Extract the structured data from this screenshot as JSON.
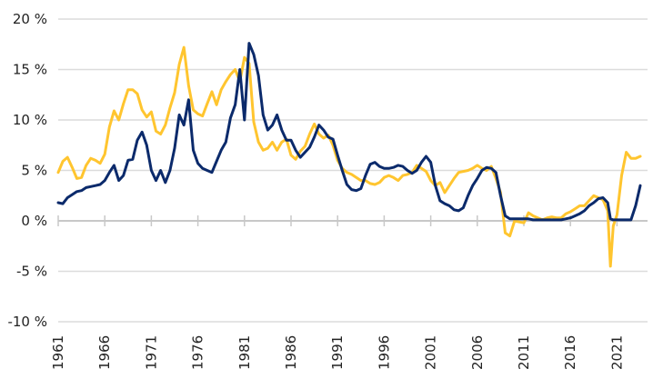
{
  "chart_data": {
    "type": "line",
    "title": "",
    "xlabel": "",
    "ylabel": "",
    "xlim": [
      1961,
      2023.6
    ],
    "ylim": [
      -10,
      20
    ],
    "grid": true,
    "legend": "none",
    "yticks": [
      20,
      15,
      10,
      5,
      0,
      -5,
      -10
    ],
    "ytick_labels": [
      "20 %",
      "15 %",
      "10 %",
      "5 %",
      "0 %",
      "-5 %",
      "-10 %"
    ],
    "xticks": [
      1961,
      1966,
      1971,
      1976,
      1981,
      1986,
      1991,
      1996,
      2001,
      2006,
      2011,
      2016,
      2021
    ],
    "xtick_labels": [
      "1961",
      "1966",
      "1971",
      "1976",
      "1981",
      "1986",
      "1991",
      "1996",
      "2001",
      "2006",
      "2011",
      "2016",
      "2021"
    ],
    "series": [
      {
        "name": "series-yellow",
        "color": "#FFC52F",
        "x": [
          1961.0,
          1961.5,
          1962.0,
          1962.5,
          1963.0,
          1963.5,
          1964.0,
          1964.5,
          1965.0,
          1965.5,
          1966.0,
          1966.5,
          1967.0,
          1967.5,
          1968.0,
          1968.5,
          1969.0,
          1969.5,
          1970.0,
          1970.5,
          1971.0,
          1971.5,
          1972.0,
          1972.5,
          1973.0,
          1973.5,
          1974.0,
          1974.5,
          1975.0,
          1975.5,
          1976.0,
          1976.5,
          1977.0,
          1977.5,
          1978.0,
          1978.5,
          1979.0,
          1979.5,
          1980.0,
          1980.5,
          1981.0,
          1981.5,
          1982.0,
          1982.5,
          1983.0,
          1983.5,
          1984.0,
          1984.5,
          1985.0,
          1985.5,
          1986.0,
          1986.5,
          1987.0,
          1987.5,
          1988.0,
          1988.5,
          1989.0,
          1989.5,
          1990.0,
          1990.5,
          1991.0,
          1991.5,
          1992.0,
          1992.5,
          1993.0,
          1993.5,
          1994.0,
          1994.5,
          1995.0,
          1995.5,
          1996.0,
          1996.5,
          1997.0,
          1997.5,
          1998.0,
          1998.5,
          1999.0,
          1999.5,
          2000.0,
          2000.5,
          2001.0,
          2001.5,
          2002.0,
          2002.5,
          2003.0,
          2003.5,
          2004.0,
          2004.5,
          2005.0,
          2005.5,
          2006.0,
          2006.5,
          2007.0,
          2007.5,
          2008.0,
          2008.5,
          2009.0,
          2009.5,
          2010.0,
          2010.5,
          2011.0,
          2011.5,
          2012.0,
          2012.5,
          2013.0,
          2013.5,
          2014.0,
          2014.5,
          2015.0,
          2015.5,
          2016.0,
          2016.5,
          2017.0,
          2017.5,
          2018.0,
          2018.5,
          2019.0,
          2019.5,
          2020.0,
          2020.3,
          2020.6,
          2021.0,
          2021.5,
          2022.0,
          2022.5,
          2023.0,
          2023.5
        ],
        "y": [
          4.8,
          5.9,
          6.3,
          5.3,
          4.2,
          4.3,
          5.5,
          6.2,
          6.0,
          5.7,
          6.6,
          9.3,
          10.9,
          10.0,
          11.6,
          13.0,
          13.0,
          12.6,
          11.0,
          10.3,
          10.8,
          8.9,
          8.6,
          9.5,
          11.2,
          12.7,
          15.5,
          17.2,
          13.4,
          11.0,
          10.6,
          10.4,
          11.6,
          12.8,
          11.5,
          13.0,
          13.8,
          14.5,
          15.0,
          13.8,
          16.2,
          15.6,
          9.8,
          7.8,
          7.0,
          7.2,
          7.8,
          7.0,
          7.8,
          8.1,
          6.5,
          6.1,
          6.9,
          7.4,
          8.6,
          9.6,
          8.6,
          8.2,
          8.5,
          7.5,
          6.0,
          5.2,
          4.8,
          4.6,
          4.3,
          4.0,
          4.0,
          3.7,
          3.6,
          3.8,
          4.3,
          4.5,
          4.3,
          4.0,
          4.5,
          4.6,
          4.8,
          5.5,
          5.2,
          4.9,
          4.0,
          3.5,
          3.8,
          2.8,
          3.5,
          4.2,
          4.8,
          4.9,
          5.0,
          5.2,
          5.5,
          5.2,
          5.0,
          5.4,
          4.2,
          2.8,
          -1.2,
          -1.5,
          0.0,
          -0.1,
          -0.2,
          0.8,
          0.5,
          0.3,
          0.1,
          0.3,
          0.4,
          0.3,
          0.3,
          0.7,
          0.9,
          1.2,
          1.5,
          1.5,
          2.0,
          2.5,
          2.3,
          2.1,
          1.0,
          -4.5,
          -0.5,
          0.6,
          4.5,
          6.8,
          6.2,
          6.2,
          6.4
        ]
      },
      {
        "name": "series-navy",
        "color": "#0B2A6B",
        "x": [
          1961.0,
          1961.5,
          1962.0,
          1962.5,
          1963.0,
          1963.5,
          1964.0,
          1964.5,
          1965.0,
          1965.5,
          1966.0,
          1966.5,
          1967.0,
          1967.5,
          1968.0,
          1968.5,
          1969.0,
          1969.5,
          1970.0,
          1970.5,
          1971.0,
          1971.5,
          1972.0,
          1972.5,
          1973.0,
          1973.5,
          1974.0,
          1974.5,
          1975.0,
          1975.5,
          1976.0,
          1976.5,
          1977.0,
          1977.5,
          1978.0,
          1978.5,
          1979.0,
          1979.5,
          1980.0,
          1980.5,
          1981.0,
          1981.5,
          1982.0,
          1982.5,
          1983.0,
          1983.5,
          1984.0,
          1984.5,
          1985.0,
          1985.5,
          1986.0,
          1986.5,
          1987.0,
          1987.5,
          1988.0,
          1988.5,
          1989.0,
          1989.5,
          1990.0,
          1990.5,
          1991.0,
          1991.5,
          1992.0,
          1992.5,
          1993.0,
          1993.5,
          1994.0,
          1994.5,
          1995.0,
          1995.5,
          1996.0,
          1996.5,
          1997.0,
          1997.5,
          1998.0,
          1998.5,
          1999.0,
          1999.5,
          2000.0,
          2000.5,
          2001.0,
          2001.5,
          2002.0,
          2002.5,
          2003.0,
          2003.5,
          2004.0,
          2004.5,
          2005.0,
          2005.5,
          2006.0,
          2006.5,
          2007.0,
          2007.5,
          2008.0,
          2008.5,
          2009.0,
          2009.5,
          2010.0,
          2010.5,
          2011.0,
          2011.5,
          2012.0,
          2012.5,
          2013.0,
          2013.5,
          2014.0,
          2014.5,
          2015.0,
          2015.5,
          2016.0,
          2016.5,
          2017.0,
          2017.5,
          2018.0,
          2018.5,
          2019.0,
          2019.5,
          2020.0,
          2020.3,
          2020.6,
          2021.0,
          2021.5,
          2022.0,
          2022.5,
          2023.0,
          2023.5
        ],
        "y": [
          1.8,
          1.7,
          2.3,
          2.6,
          2.9,
          3.0,
          3.3,
          3.4,
          3.5,
          3.6,
          4.0,
          4.8,
          5.5,
          4.0,
          4.5,
          6.0,
          6.1,
          8.0,
          8.8,
          7.5,
          5.0,
          4.0,
          5.0,
          3.8,
          5.0,
          7.2,
          10.5,
          9.5,
          12.0,
          7.0,
          5.7,
          5.2,
          5.0,
          4.8,
          5.9,
          7.0,
          7.8,
          10.2,
          11.5,
          15.0,
          10.0,
          17.6,
          16.5,
          14.4,
          10.5,
          9.0,
          9.5,
          10.5,
          9.0,
          8.0,
          8.0,
          7.0,
          6.3,
          6.8,
          7.3,
          8.3,
          9.5,
          9.0,
          8.3,
          8.1,
          6.5,
          5.0,
          3.6,
          3.1,
          3.0,
          3.2,
          4.5,
          5.6,
          5.8,
          5.4,
          5.2,
          5.2,
          5.3,
          5.5,
          5.4,
          5.0,
          4.7,
          5.0,
          5.8,
          6.4,
          5.8,
          3.5,
          2.0,
          1.7,
          1.5,
          1.1,
          1.0,
          1.3,
          2.5,
          3.5,
          4.2,
          5.0,
          5.3,
          5.2,
          4.8,
          2.5,
          0.5,
          0.2,
          0.2,
          0.2,
          0.2,
          0.2,
          0.1,
          0.1,
          0.1,
          0.1,
          0.1,
          0.1,
          0.1,
          0.2,
          0.3,
          0.5,
          0.7,
          1.0,
          1.5,
          1.8,
          2.2,
          2.3,
          1.8,
          0.2,
          0.1,
          0.1,
          0.1,
          0.1,
          0.1,
          1.5,
          3.5
        ]
      }
    ]
  }
}
